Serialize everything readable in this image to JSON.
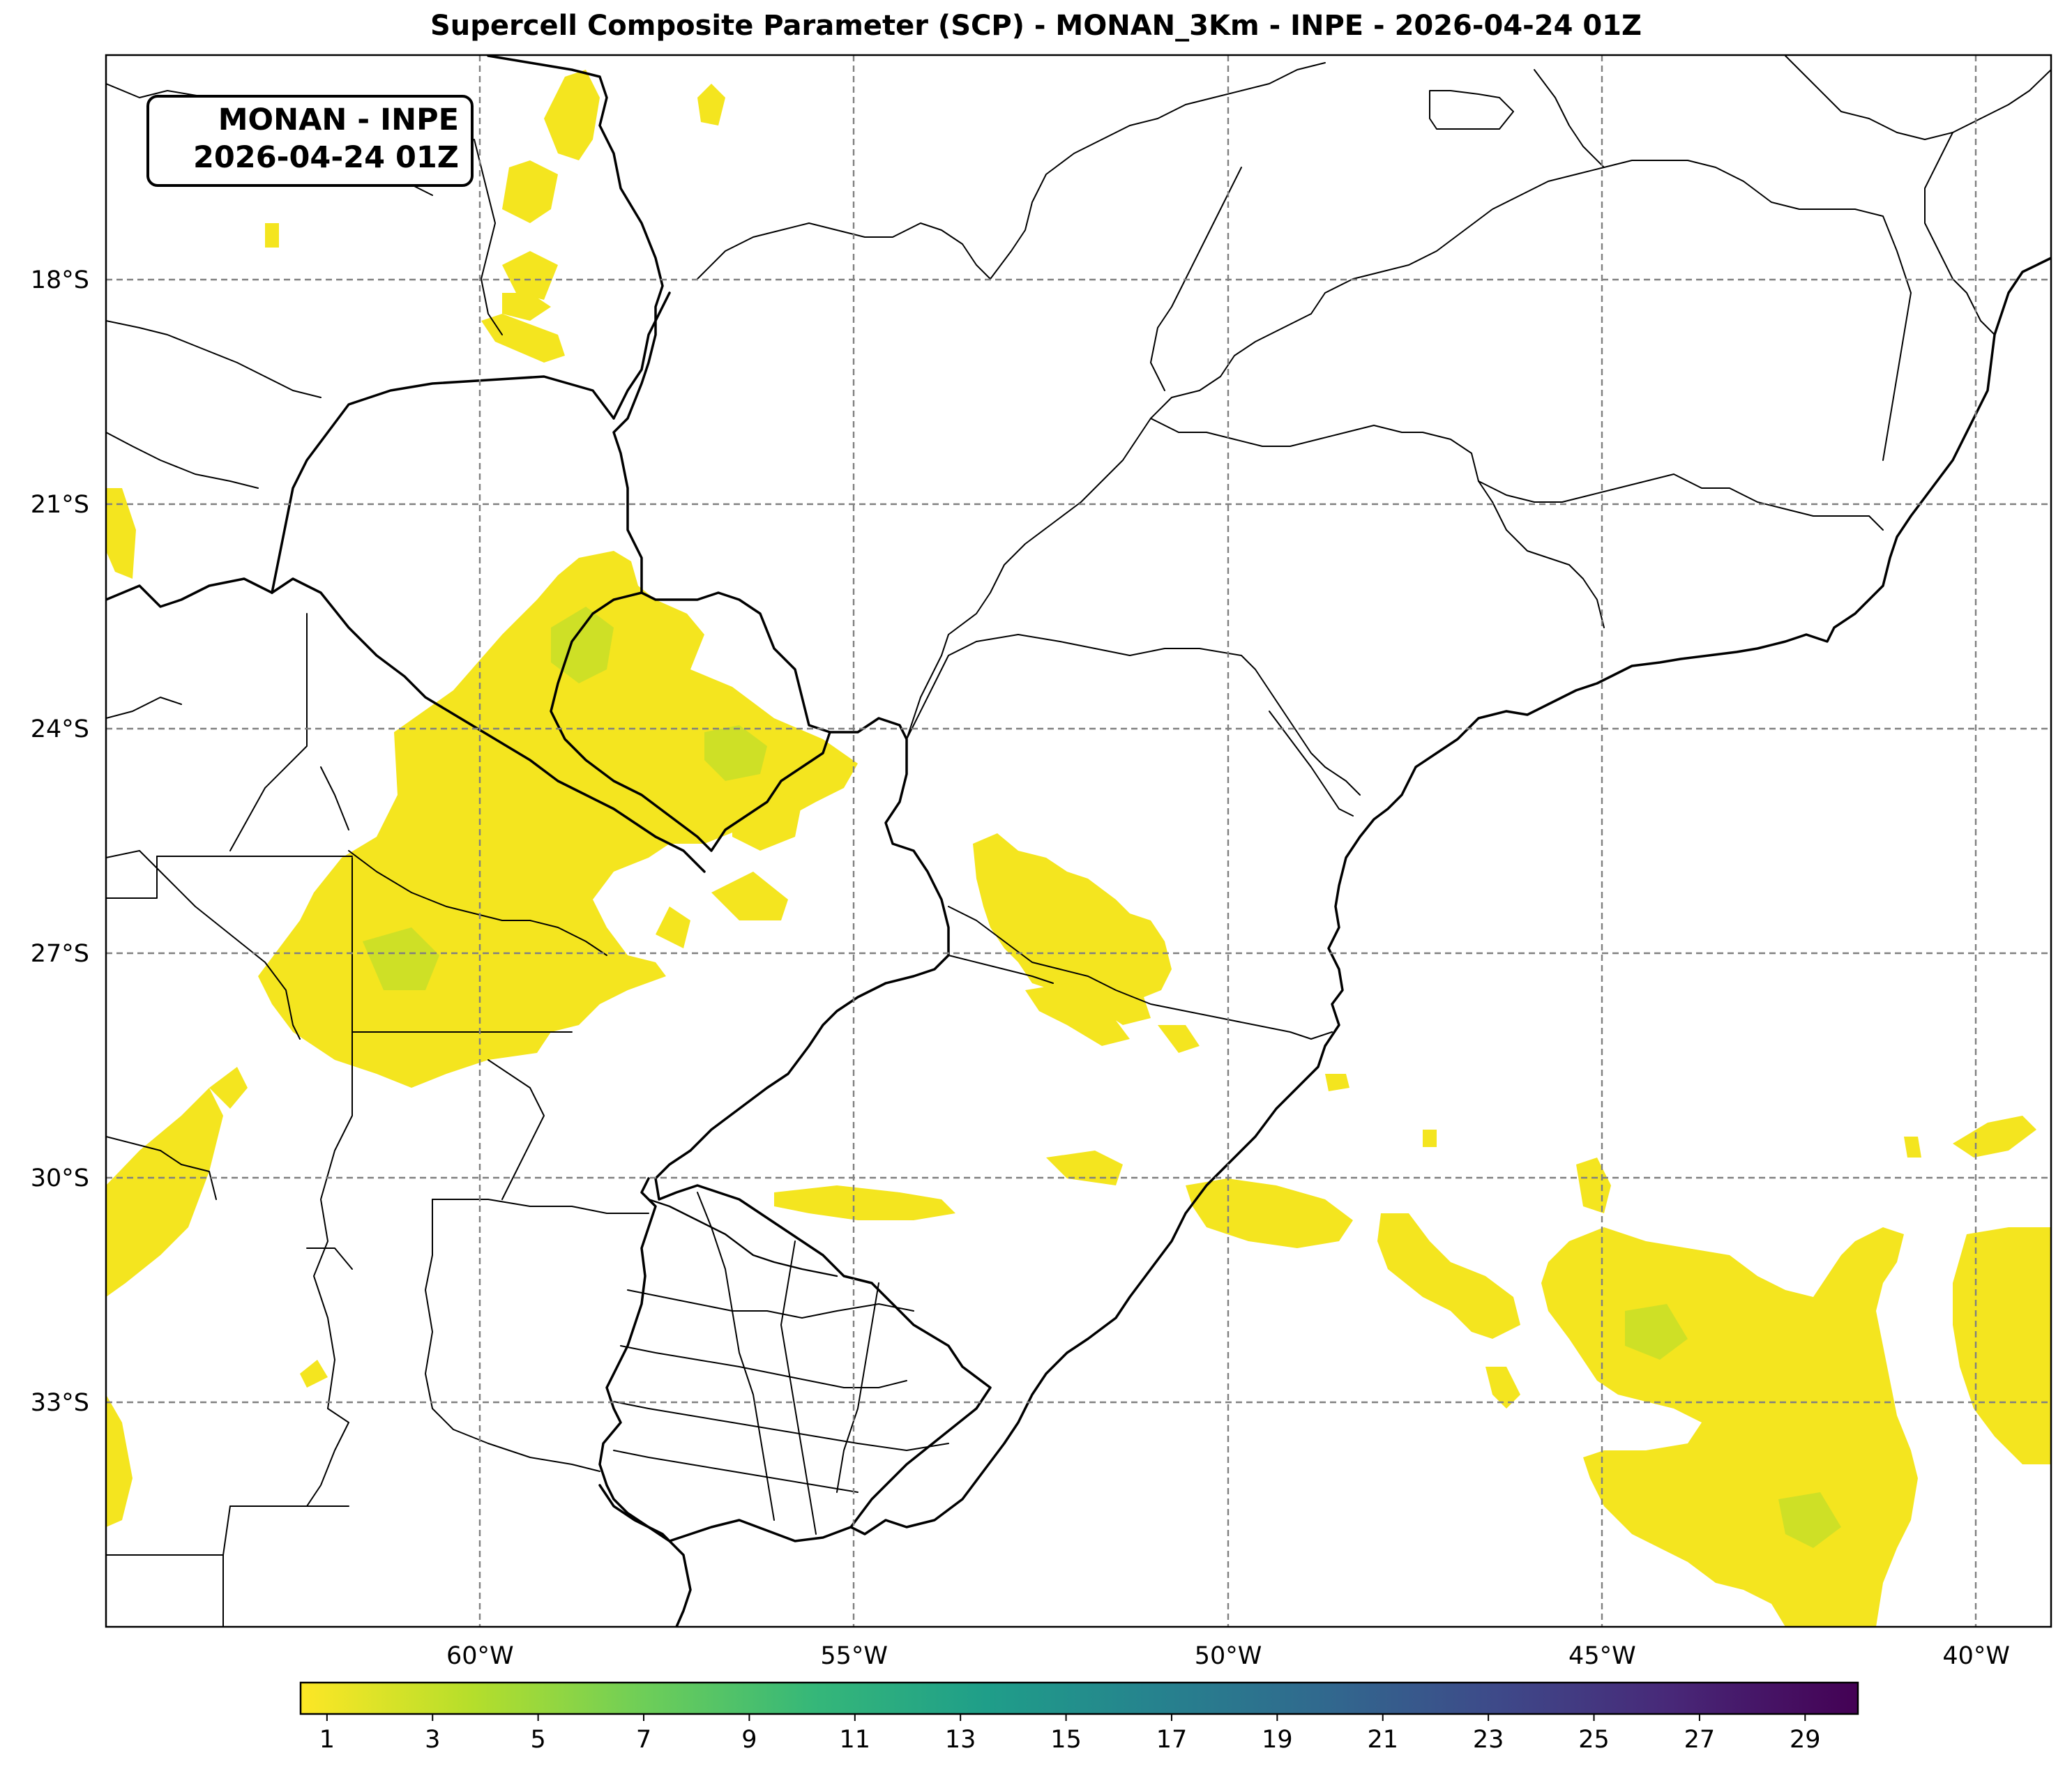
{
  "title": "Supercell Composite Parameter (SCP) - MONAN_3Km - INPE - 2026-04-24 01Z",
  "badge": {
    "line1": "MONAN - INPE",
    "line2": "2026-04-24 01Z"
  },
  "map": {
    "lon_range": [
      -65,
      -39
    ],
    "lat_range": [
      -36,
      -15
    ],
    "lat_ticks": [
      {
        "value": -18,
        "label": "18°S"
      },
      {
        "value": -21,
        "label": "21°S"
      },
      {
        "value": -24,
        "label": "24°S"
      },
      {
        "value": -27,
        "label": "27°S"
      },
      {
        "value": -30,
        "label": "30°S"
      },
      {
        "value": -33,
        "label": "33°S"
      }
    ],
    "lon_ticks": [
      {
        "value": -60,
        "label": "60°W"
      },
      {
        "value": -55,
        "label": "55°W"
      },
      {
        "value": -50,
        "label": "50°W"
      },
      {
        "value": -45,
        "label": "45°W"
      },
      {
        "value": -40,
        "label": "40°W"
      }
    ],
    "grid": true,
    "colors": {
      "field_low": "#f4e51f",
      "field_mid": "#b6de2b",
      "field_high": "#7ad151",
      "coast": "#000000",
      "grid": "#808080"
    }
  },
  "colorbar": {
    "colormap": "viridis_r",
    "range": [
      0.5,
      30
    ],
    "tick_labels": [
      "1",
      "3",
      "5",
      "7",
      "9",
      "11",
      "13",
      "15",
      "17",
      "19",
      "21",
      "23",
      "25",
      "27",
      "29"
    ],
    "stops": [
      "#fde725",
      "#b5de2b",
      "#6ece58",
      "#35b779",
      "#1f9e89",
      "#26828e",
      "#31688e",
      "#3e4989",
      "#482878",
      "#440154"
    ]
  }
}
